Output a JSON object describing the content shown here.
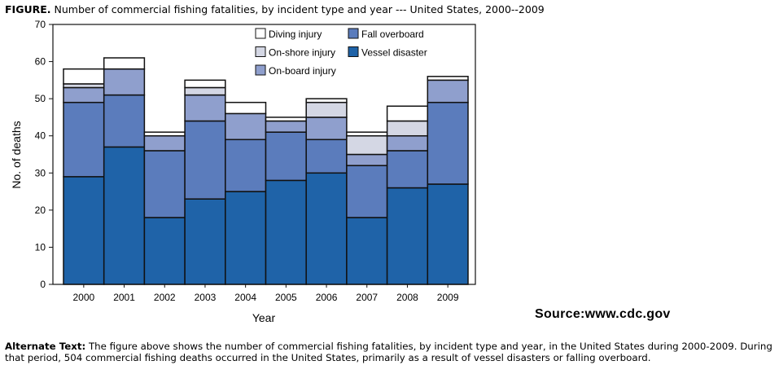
{
  "figure": {
    "title_bold": "FIGURE.",
    "title_rest": "Number of commercial fishing fatalities, by incident type and year --- United States, 2000--2009"
  },
  "source": "Source:www.cdc.gov",
  "alt_text": {
    "label": "Alternate Text:",
    "body": "The figure above shows the number of commercial fishing fatalities, by incident type and year, in the United States during 2000-2009. During that period, 504 commercial fishing deaths occurred in the United States, primarily as a result of vessel disasters or falling overboard."
  },
  "chart_data": {
    "type": "bar",
    "stacked": true,
    "title": "",
    "xlabel": "Year",
    "ylabel": "No. of deaths",
    "ylim": [
      0,
      70
    ],
    "yticks": [
      0,
      10,
      20,
      30,
      40,
      50,
      60,
      70
    ],
    "categories": [
      "2000",
      "2001",
      "2002",
      "2003",
      "2004",
      "2005",
      "2006",
      "2007",
      "2008",
      "2009"
    ],
    "series": [
      {
        "name": "Vessel disaster",
        "color": "#1f63a8",
        "values": [
          29,
          37,
          18,
          23,
          25,
          28,
          30,
          18,
          26,
          27
        ]
      },
      {
        "name": "Fall overboard",
        "color": "#5b7cbc",
        "values": [
          20,
          14,
          18,
          21,
          14,
          13,
          9,
          14,
          10,
          22
        ]
      },
      {
        "name": "On-board injury",
        "color": "#8f9fcd",
        "values": [
          4,
          7,
          4,
          7,
          7,
          3,
          6,
          3,
          4,
          6
        ]
      },
      {
        "name": "On-shore injury",
        "color": "#d4d7e4",
        "values": [
          1,
          0,
          0,
          2,
          0,
          0,
          4,
          5,
          4,
          0
        ]
      },
      {
        "name": "Diving injury",
        "color": "#ffffff",
        "values": [
          4,
          3,
          1,
          2,
          3,
          1,
          1,
          1,
          4,
          1
        ]
      }
    ],
    "legend": {
      "placement": "top-right",
      "layout": [
        [
          "Diving injury",
          "Fall overboard"
        ],
        [
          "On-shore injury",
          "Vessel disaster"
        ],
        [
          "On-board injury"
        ]
      ]
    },
    "grid": false
  }
}
